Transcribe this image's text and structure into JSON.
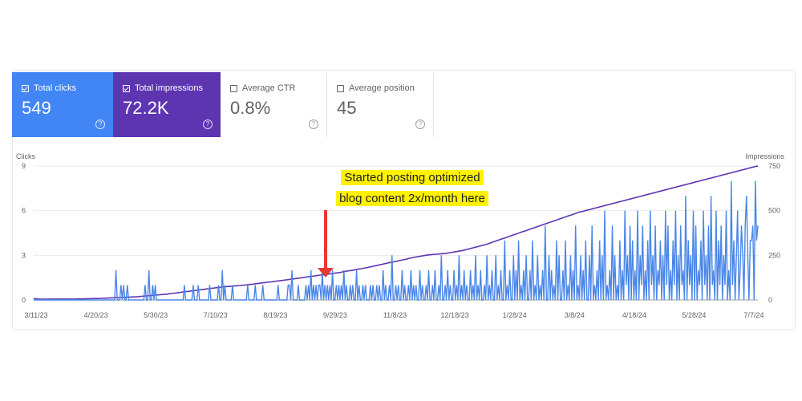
{
  "metrics": [
    {
      "label": "Total clicks",
      "value": "549",
      "checked": true,
      "help": "?"
    },
    {
      "label": "Total impressions",
      "value": "72.2K",
      "checked": true,
      "help": "?"
    },
    {
      "label": "Average CTR",
      "value": "0.8%",
      "checked": false,
      "help": "?"
    },
    {
      "label": "Average position",
      "value": "45",
      "checked": false,
      "help": "?"
    }
  ],
  "colors": {
    "clicks": "#4a86e8",
    "impressions": "#5e35b1",
    "annotation_bg": "#fff200",
    "arrow": "#e53935"
  },
  "annotation": {
    "line1": "Started posting optimized",
    "line2": "blog content 2x/month here"
  },
  "chart_data": {
    "type": "line",
    "ylabel_left": "Clicks",
    "ylabel_right": "Impressions",
    "y_left_ticks": [
      "9",
      "6",
      "3",
      "0"
    ],
    "y_right_ticks": [
      "750",
      "500",
      "250",
      "0"
    ],
    "ylim_left": [
      0,
      9
    ],
    "ylim_right": [
      0,
      750
    ],
    "x_ticks": [
      "3/11/23",
      "4/20/23",
      "5/30/23",
      "7/10/23",
      "8/19/23",
      "9/29/23",
      "11/8/23",
      "12/18/23",
      "1/28/24",
      "3/8/24",
      "4/18/24",
      "5/28/24",
      "7/7/24"
    ],
    "x_range": [
      "3/11/23",
      "7/14/24"
    ],
    "grid": true,
    "series": [
      {
        "name": "Clicks",
        "axis": "left",
        "values": [
          0,
          0,
          0,
          0,
          0,
          0,
          0,
          0,
          0,
          0,
          0,
          0,
          0,
          0,
          0,
          0,
          0,
          0,
          0,
          0,
          0,
          0,
          0,
          0,
          0,
          0,
          0,
          0,
          0,
          0,
          0,
          0,
          0,
          0,
          0,
          0,
          0,
          0,
          0,
          0,
          0,
          0,
          0,
          0,
          0,
          0,
          0,
          0,
          0,
          0,
          0,
          0,
          0,
          0,
          0,
          0,
          0,
          0,
          0,
          0,
          0,
          0,
          0,
          0,
          0,
          2,
          0,
          0,
          0,
          1,
          0,
          1,
          0,
          0,
          1,
          0,
          0,
          0,
          0,
          0,
          0,
          0,
          0,
          0,
          0,
          0,
          0,
          0,
          1,
          0,
          0,
          2,
          0,
          0,
          1,
          0,
          1,
          0,
          0,
          0,
          0,
          0,
          0,
          0,
          0,
          0,
          0,
          0,
          0,
          0,
          0,
          0,
          0,
          0,
          0,
          0,
          0,
          0,
          0,
          1,
          0,
          0,
          0,
          0,
          0,
          0,
          1,
          0,
          0,
          0,
          1,
          0,
          0,
          0,
          0,
          0,
          0,
          0,
          0,
          1,
          0,
          0,
          0,
          0,
          0,
          0,
          1,
          0,
          0,
          2,
          0,
          1,
          0,
          0,
          0,
          0,
          0,
          1,
          0,
          0,
          0,
          0,
          0,
          0,
          0,
          0,
          0,
          0,
          0,
          1,
          0,
          0,
          0,
          0,
          0,
          1,
          0,
          0,
          0,
          0,
          0,
          1,
          0,
          0,
          0,
          0,
          0,
          0,
          0,
          0,
          0,
          0,
          0,
          1,
          0,
          0,
          0,
          0,
          0,
          0,
          0,
          1,
          1,
          0,
          2,
          0,
          0,
          0,
          0,
          1,
          0,
          0,
          0,
          0,
          0,
          1,
          0,
          1,
          0,
          2,
          0,
          1,
          0,
          1,
          0,
          1,
          1,
          0,
          2,
          0,
          1,
          0,
          1,
          0,
          1,
          0,
          2,
          0,
          0,
          1,
          0,
          1,
          0,
          1,
          0,
          2,
          0,
          1,
          0,
          0,
          1,
          0,
          1,
          0,
          0,
          2,
          0,
          1,
          0,
          0,
          1,
          0,
          1,
          0,
          0,
          0,
          1,
          0,
          1,
          0,
          0,
          1,
          0,
          1,
          0,
          0,
          2,
          0,
          1,
          0,
          0,
          1,
          0,
          3,
          0,
          0,
          1,
          0,
          1,
          0,
          0,
          2,
          0,
          1,
          0,
          0,
          1,
          0,
          2,
          0,
          1,
          0,
          1,
          0,
          0,
          2,
          0,
          1,
          0,
          0,
          1,
          0,
          2,
          0,
          0,
          1,
          0,
          2,
          0,
          0,
          1,
          0,
          3,
          0,
          0,
          1,
          0,
          2,
          0,
          1,
          0,
          0,
          2,
          0,
          1,
          0,
          3,
          0,
          1,
          0,
          2,
          0,
          1,
          0,
          0,
          2,
          0,
          1,
          0,
          3,
          0,
          1,
          0,
          2,
          0,
          0,
          1,
          0,
          3,
          0,
          1,
          0,
          2,
          0,
          0,
          3,
          0,
          1,
          0,
          2,
          0,
          0,
          4,
          0,
          1,
          0,
          2,
          0,
          0,
          3,
          0,
          2,
          0,
          4,
          0,
          1,
          0,
          2,
          0,
          3,
          0,
          0,
          2,
          0,
          4,
          0,
          1,
          0,
          3,
          0,
          1,
          0,
          2,
          0,
          5,
          0,
          0,
          3,
          0,
          2,
          0,
          1,
          0,
          4,
          0,
          3,
          0,
          0,
          2,
          0,
          4,
          0,
          1,
          0,
          3,
          0,
          2,
          0,
          5,
          0,
          1,
          0,
          3,
          0,
          2,
          0,
          4,
          0,
          0,
          3,
          0,
          5,
          0,
          1,
          0,
          2,
          0,
          4,
          0,
          3,
          0,
          6,
          0,
          1,
          0,
          2,
          0,
          5,
          0,
          3,
          0,
          1,
          0,
          4,
          0,
          2,
          0,
          6,
          1,
          3,
          0,
          5,
          0,
          4,
          0,
          2,
          0,
          6,
          0,
          3,
          1,
          5,
          0,
          2,
          0,
          4,
          0,
          6,
          1,
          3,
          0,
          5,
          0,
          2,
          1,
          4,
          0,
          3,
          0,
          6,
          1,
          5,
          0,
          2,
          0,
          4,
          1,
          6,
          0,
          3,
          0,
          5,
          1,
          2,
          0,
          7,
          0,
          4,
          1,
          3,
          0,
          6,
          0,
          5,
          0,
          2,
          1,
          4,
          0,
          6,
          1,
          3,
          0,
          5,
          0,
          7,
          1,
          2,
          0,
          6,
          0,
          4,
          1,
          5,
          0,
          3,
          1,
          6,
          0,
          2,
          0,
          8,
          1,
          4,
          0,
          3,
          6,
          0,
          2,
          5,
          3,
          0,
          5,
          7,
          3,
          0,
          4,
          4,
          5,
          0,
          8,
          4,
          5
        ]
      },
      {
        "name": "Impressions",
        "axis": "right",
        "values": [
          8,
          6,
          5,
          5,
          4,
          4,
          4,
          4,
          5,
          5,
          5,
          5,
          5,
          5,
          5,
          5,
          5,
          5,
          5,
          5,
          5,
          6,
          6,
          6,
          6,
          6,
          7,
          7,
          7,
          8,
          8,
          8,
          9,
          9,
          10,
          10,
          11,
          11,
          12,
          12,
          13,
          13,
          14,
          14,
          15,
          15,
          16,
          16,
          17,
          17,
          18,
          19,
          20,
          21,
          22,
          23,
          24,
          25,
          26,
          27,
          28,
          29,
          30,
          31,
          32,
          33,
          35,
          36,
          38,
          39,
          41,
          42,
          44,
          45,
          47,
          48,
          50,
          51,
          53,
          54,
          56,
          57,
          59,
          60,
          62,
          63,
          65,
          66,
          68,
          69,
          71,
          72,
          73,
          74,
          75,
          76,
          77,
          78,
          79,
          80,
          81,
          82,
          83,
          84,
          85,
          87,
          88,
          90,
          91,
          93,
          94,
          96,
          97,
          99,
          100,
          101,
          103,
          104,
          106,
          107,
          109,
          110,
          112,
          113,
          115,
          117,
          118,
          120,
          121,
          123,
          124,
          126,
          128,
          130,
          131,
          133,
          134,
          136,
          138,
          139,
          141,
          142,
          144,
          145,
          147,
          148,
          150,
          152,
          153,
          155,
          158,
          160,
          162,
          164,
          165,
          167,
          170,
          172,
          174,
          175,
          178,
          180,
          182,
          185,
          187,
          190,
          192,
          195,
          198,
          200,
          203,
          205,
          208,
          210,
          212,
          215,
          217,
          220,
          222,
          225,
          227,
          230,
          233,
          235,
          238,
          240,
          242,
          244,
          246,
          248,
          250,
          252,
          253,
          254,
          255,
          256,
          257,
          258,
          259,
          260,
          261,
          263,
          265,
          267,
          269,
          271,
          273,
          275,
          277,
          280,
          283,
          286,
          289,
          292,
          295,
          298,
          301,
          304,
          307,
          310,
          314,
          318,
          322,
          326,
          330,
          334,
          338,
          342,
          346,
          350,
          354,
          358,
          362,
          366,
          370,
          374,
          378,
          382,
          386,
          390,
          394,
          398,
          402,
          406,
          410,
          414,
          418,
          422,
          426,
          430,
          434,
          438,
          442,
          446,
          450,
          454,
          458,
          462,
          466,
          470,
          474,
          478,
          482,
          486,
          490,
          493,
          496,
          499,
          502,
          505,
          508,
          511,
          514,
          517,
          520,
          523,
          526,
          529,
          532,
          535,
          538,
          541,
          544,
          547,
          550,
          553,
          556,
          559,
          562,
          565,
          568,
          571,
          574,
          577,
          580,
          583,
          586,
          589,
          592,
          595,
          598,
          601,
          604,
          607,
          610,
          613,
          616,
          619,
          622,
          625,
          628,
          631,
          634,
          637,
          640,
          643,
          646,
          649,
          652,
          655,
          658,
          661,
          664,
          667,
          670,
          673,
          676,
          679,
          682,
          685,
          688,
          691,
          694,
          697,
          700,
          703,
          706,
          709,
          712,
          715,
          718,
          721,
          724,
          727,
          730,
          733,
          736,
          739,
          742,
          745,
          748,
          750
        ]
      }
    ]
  }
}
